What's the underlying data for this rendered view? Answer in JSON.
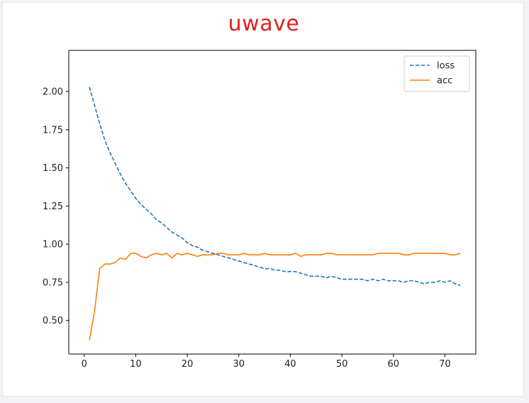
{
  "chart_data": {
    "type": "line",
    "title": "uwave",
    "xlabel": "",
    "ylabel": "",
    "xlim": [
      -3,
      76
    ],
    "ylim": [
      0.28,
      2.27
    ],
    "xticks": [
      0,
      10,
      20,
      30,
      40,
      50,
      60,
      70
    ],
    "yticks": [
      0.5,
      0.75,
      1.0,
      1.25,
      1.5,
      1.75,
      2.0
    ],
    "ytick_labels": [
      "0.50",
      "0.75",
      "1.00",
      "1.25",
      "1.50",
      "1.75",
      "2.00"
    ],
    "legend_position": "top-right",
    "grid": false,
    "x": [
      1,
      2,
      3,
      4,
      5,
      6,
      7,
      8,
      9,
      10,
      11,
      12,
      13,
      14,
      15,
      16,
      17,
      18,
      19,
      20,
      21,
      22,
      23,
      24,
      25,
      26,
      27,
      28,
      29,
      30,
      31,
      32,
      33,
      34,
      35,
      36,
      37,
      38,
      39,
      40,
      41,
      42,
      43,
      44,
      45,
      46,
      47,
      48,
      49,
      50,
      51,
      52,
      53,
      54,
      55,
      56,
      57,
      58,
      59,
      60,
      61,
      62,
      63,
      64,
      65,
      66,
      67,
      68,
      69,
      70,
      71,
      72,
      73
    ],
    "series": [
      {
        "name": "loss",
        "color": "#1f77b4",
        "style": "dashed",
        "values": [
          2.03,
          1.91,
          1.79,
          1.68,
          1.6,
          1.53,
          1.46,
          1.4,
          1.35,
          1.3,
          1.26,
          1.23,
          1.2,
          1.16,
          1.14,
          1.11,
          1.08,
          1.06,
          1.04,
          1.01,
          0.99,
          0.98,
          0.96,
          0.95,
          0.94,
          0.93,
          0.92,
          0.91,
          0.9,
          0.89,
          0.88,
          0.87,
          0.86,
          0.85,
          0.84,
          0.84,
          0.83,
          0.83,
          0.82,
          0.82,
          0.82,
          0.81,
          0.8,
          0.79,
          0.79,
          0.79,
          0.78,
          0.79,
          0.78,
          0.77,
          0.77,
          0.77,
          0.77,
          0.77,
          0.76,
          0.77,
          0.76,
          0.77,
          0.76,
          0.76,
          0.76,
          0.75,
          0.76,
          0.76,
          0.75,
          0.74,
          0.75,
          0.75,
          0.76,
          0.75,
          0.76,
          0.74,
          0.73
        ]
      },
      {
        "name": "acc",
        "color": "#ff7f0e",
        "style": "solid",
        "values": [
          0.37,
          0.56,
          0.84,
          0.87,
          0.87,
          0.88,
          0.91,
          0.9,
          0.94,
          0.94,
          0.92,
          0.91,
          0.93,
          0.94,
          0.93,
          0.94,
          0.91,
          0.94,
          0.93,
          0.94,
          0.93,
          0.92,
          0.93,
          0.93,
          0.93,
          0.94,
          0.94,
          0.93,
          0.93,
          0.93,
          0.94,
          0.93,
          0.93,
          0.93,
          0.94,
          0.93,
          0.93,
          0.93,
          0.93,
          0.93,
          0.94,
          0.92,
          0.93,
          0.93,
          0.93,
          0.93,
          0.94,
          0.94,
          0.93,
          0.93,
          0.93,
          0.93,
          0.93,
          0.93,
          0.93,
          0.93,
          0.94,
          0.94,
          0.94,
          0.94,
          0.94,
          0.93,
          0.93,
          0.94,
          0.94,
          0.94,
          0.94,
          0.94,
          0.94,
          0.94,
          0.93,
          0.93,
          0.94
        ]
      }
    ]
  }
}
